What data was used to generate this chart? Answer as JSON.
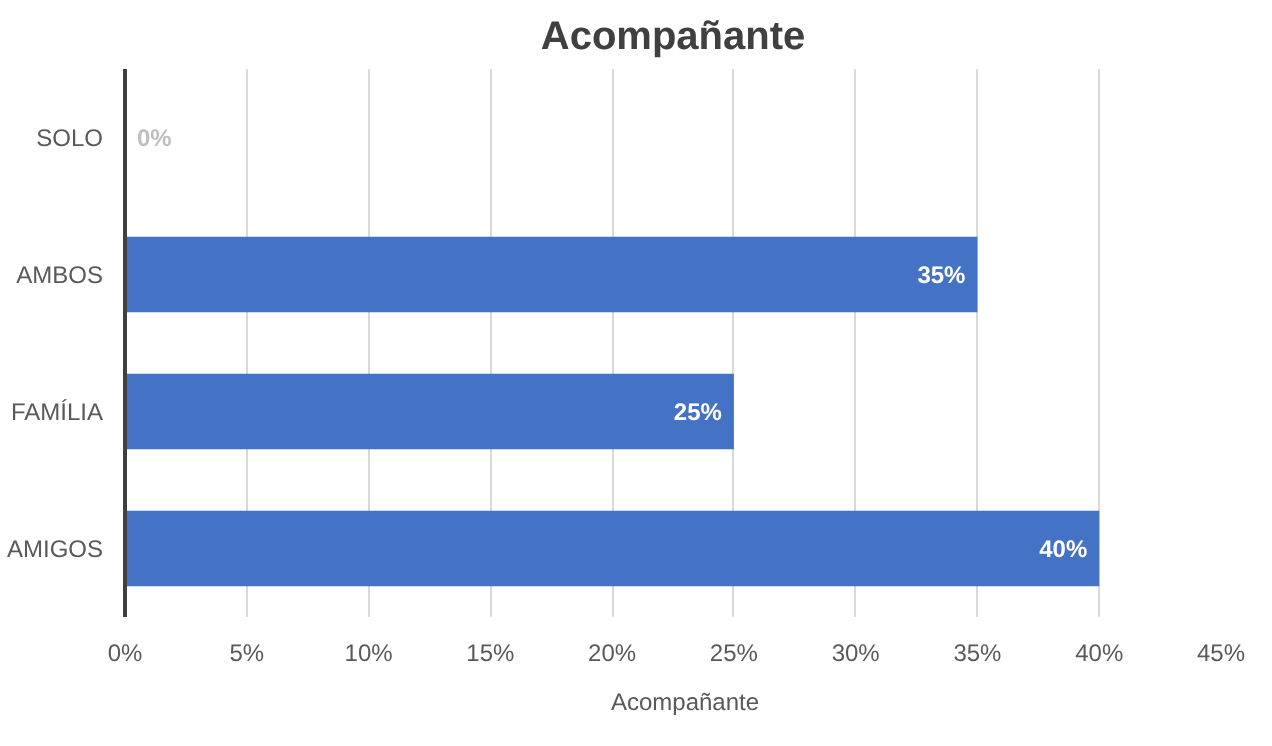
{
  "chart_data": {
    "type": "bar",
    "orientation": "horizontal",
    "title": "Acompañante",
    "categories": [
      "SOLO",
      "AMBOS",
      "FAMÍLIA",
      "AMIGOS"
    ],
    "series": [
      {
        "name": "Acompañante",
        "color": "#4472c4",
        "values": [
          0,
          35,
          25,
          40
        ],
        "value_labels": [
          "0%",
          "35%",
          "25%",
          "40%"
        ]
      }
    ],
    "xlim": [
      0,
      45
    ],
    "xticks": [
      {
        "value": 0,
        "label": "0%"
      },
      {
        "value": 5,
        "label": "5%"
      },
      {
        "value": 10,
        "label": "10%"
      },
      {
        "value": 15,
        "label": "15%"
      },
      {
        "value": 20,
        "label": "20%"
      },
      {
        "value": 25,
        "label": "25%"
      },
      {
        "value": 30,
        "label": "30%"
      },
      {
        "value": 35,
        "label": "35%"
      },
      {
        "value": 40,
        "label": "40%"
      },
      {
        "value": 45,
        "label": "45%"
      }
    ],
    "grid": "x",
    "legend": "bottom"
  }
}
